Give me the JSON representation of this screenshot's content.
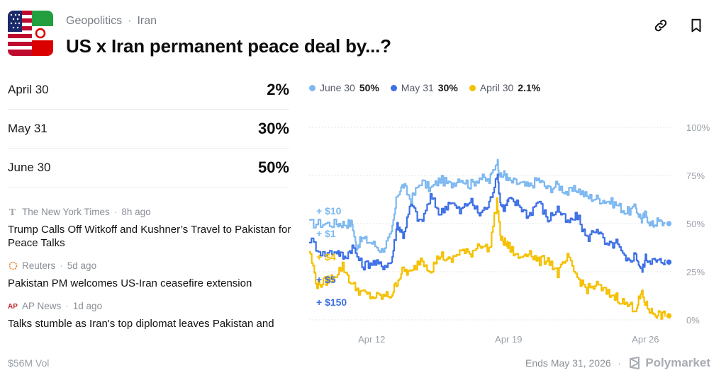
{
  "breadcrumb": {
    "category": "Geopolitics",
    "separator": "·",
    "subcategory": "Iran"
  },
  "title": "US x Iran permanent peace deal by...?",
  "icons": {
    "link": "link-icon",
    "bookmark": "bookmark-icon"
  },
  "outcomes": [
    {
      "label": "April 30",
      "percent": "2%"
    },
    {
      "label": "May 31",
      "percent": "30%"
    },
    {
      "label": "June 30",
      "percent": "50%"
    }
  ],
  "news": [
    {
      "source": "The New York Times",
      "age": "8h ago",
      "headline": "Trump Calls Off Witkoff and Kushner’s Travel to Pakistan for Peace Talks"
    },
    {
      "source": "Reuters",
      "age": "5d ago",
      "headline": "Pakistan PM welcomes US-Iran ceasefire extension"
    },
    {
      "source": "AP News",
      "age": "1d ago",
      "headline": "Talks stumble as Iran's top diplomat leaves Pakistan and"
    }
  ],
  "volume": "$56M Vol",
  "ends": "Ends May 31, 2026",
  "dot": "·",
  "brand": "Polymarket",
  "colors": {
    "june": "#7db8f0",
    "may": "#3d6fe6",
    "april": "#f5c000",
    "grid": "#d7dade",
    "axis_text": "#9aa0a6"
  },
  "chart_data": {
    "type": "line",
    "legend": [
      {
        "name": "June 30",
        "value": "50%"
      },
      {
        "name": "May 31",
        "value": "30%"
      },
      {
        "name": "April 30",
        "value": "2.1%"
      }
    ],
    "y_ticks": [
      "100%",
      "75%",
      "50%",
      "25%",
      "0%"
    ],
    "ylim": [
      0,
      100
    ],
    "x_ticks": [
      {
        "label": "Apr 12",
        "day": 12
      },
      {
        "label": "Apr 19",
        "day": 19
      },
      {
        "label": "Apr 26",
        "day": 26
      }
    ],
    "xlim": [
      8.8,
      27.4
    ],
    "grid": true,
    "buy_labels": [
      "+ $10",
      "+ $1",
      "+ $4",
      "+ $5",
      "+ $150"
    ],
    "series": [
      {
        "name": "June 30",
        "x": [
          8.8,
          9.5,
          10.2,
          10.6,
          11.0,
          11.2,
          11.5,
          12.0,
          12.5,
          13.0,
          13.3,
          13.6,
          14.0,
          14.5,
          15.0,
          15.5,
          16.0,
          16.5,
          17.0,
          17.5,
          18.0,
          18.4,
          18.6,
          18.8,
          19.0,
          19.5,
          20.0,
          20.5,
          21.0,
          21.5,
          22.0,
          22.5,
          23.0,
          23.5,
          24.0,
          24.5,
          25.0,
          25.5,
          25.8,
          26.0,
          26.3,
          26.6,
          27.0,
          27.2
        ],
        "values": [
          50,
          50,
          50,
          50,
          50,
          38,
          42,
          40,
          36,
          44,
          65,
          70,
          62,
          72,
          68,
          73,
          70,
          74,
          70,
          74,
          72,
          83,
          74,
          76,
          72,
          71,
          69,
          73,
          68,
          70,
          66,
          68,
          64,
          63,
          62,
          60,
          56,
          58,
          52,
          55,
          49,
          51,
          50,
          50
        ]
      },
      {
        "name": "May 31",
        "x": [
          8.8,
          9.5,
          10.2,
          10.6,
          11.0,
          11.5,
          12.0,
          12.5,
          13.0,
          13.3,
          13.6,
          14.0,
          14.5,
          15.0,
          15.5,
          16.0,
          16.5,
          17.0,
          17.5,
          18.0,
          18.4,
          18.6,
          18.8,
          19.0,
          19.5,
          20.0,
          20.5,
          21.0,
          21.5,
          22.0,
          22.5,
          23.0,
          23.5,
          24.0,
          24.5,
          25.0,
          25.5,
          25.8,
          26.0,
          26.3,
          26.6,
          27.0,
          27.2
        ],
        "values": [
          42,
          34,
          36,
          32,
          38,
          28,
          30,
          28,
          30,
          50,
          44,
          60,
          50,
          64,
          55,
          62,
          56,
          62,
          55,
          60,
          76,
          60,
          58,
          62,
          60,
          54,
          62,
          52,
          58,
          50,
          54,
          42,
          48,
          38,
          40,
          30,
          34,
          25,
          32,
          31,
          30,
          31,
          30
        ]
      },
      {
        "name": "April 30",
        "x": [
          8.8,
          9.2,
          9.6,
          10.0,
          10.5,
          11.0,
          11.5,
          12.0,
          12.5,
          13.0,
          13.3,
          13.6,
          14.0,
          14.5,
          15.0,
          15.5,
          16.0,
          16.5,
          17.0,
          17.5,
          18.0,
          18.4,
          18.6,
          18.8,
          19.0,
          19.5,
          20.0,
          20.5,
          21.0,
          21.5,
          22.0,
          22.5,
          23.0,
          23.5,
          24.0,
          24.5,
          25.0,
          25.5,
          25.8,
          26.0,
          26.3,
          26.6,
          27.0,
          27.2
        ],
        "values": [
          36,
          18,
          20,
          22,
          28,
          18,
          14,
          12,
          12,
          13,
          20,
          26,
          24,
          32,
          26,
          34,
          30,
          36,
          34,
          40,
          36,
          62,
          42,
          40,
          38,
          32,
          36,
          30,
          32,
          24,
          32,
          22,
          16,
          18,
          14,
          12,
          8,
          6,
          14,
          8,
          4,
          3,
          2,
          2.1
        ]
      }
    ]
  }
}
